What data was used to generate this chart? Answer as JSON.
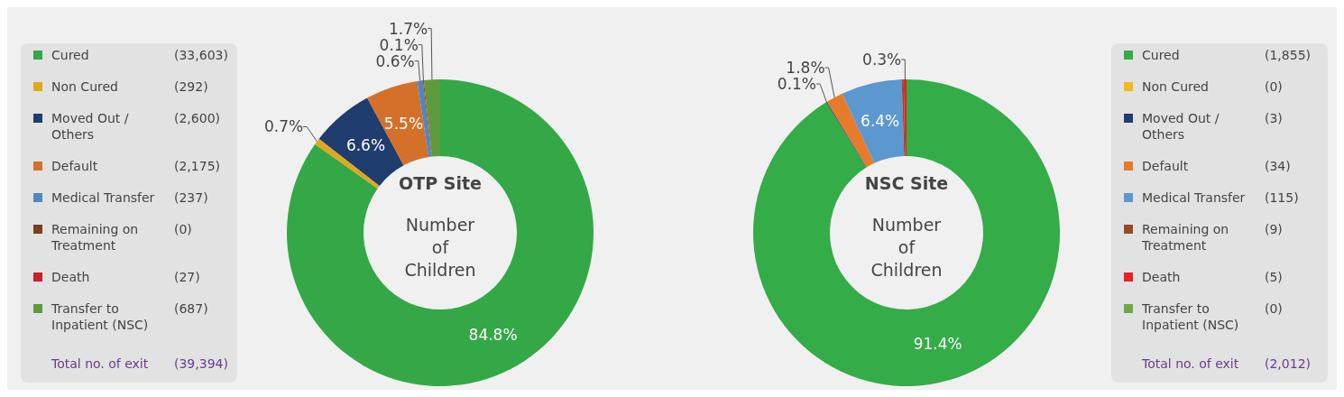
{
  "chart_data": [
    {
      "type": "other",
      "annotations": [
        "(33,603)",
        "(292)",
        "(2,600)",
        "(2,175)",
        "(237)",
        "(0)",
        "(27)",
        "(687)",
        "Total no. of exit",
        "(39,394)"
      ]
    },
    {
      "type": "donut",
      "title": "OTP Site",
      "subtitle": "Number of Children",
      "legend": "left",
      "categories": [
        "Cured",
        "Non Cured",
        "Moved Out / Others",
        "Default",
        "Medical Transfer",
        "Remaining on Treatment",
        "Death",
        "Transfer to Inpatient (NSC)"
      ],
      "values": [
        84.8,
        0.7,
        6.6,
        5.5,
        0.6,
        0,
        0.1,
        1.7
      ],
      "value_labels": [
        "84.8%",
        "0.7%",
        "6.6%",
        "5.5%",
        "0.6%",
        null,
        "0.1%",
        "1.7%"
      ],
      "colors": [
        "#34a846",
        "#e0a81c",
        "#1f3d6e",
        "#d4702a",
        "#4f88c0",
        "#7b3f1e",
        "#c8202a",
        "#5e9a3e"
      ]
    },
    {
      "type": "donut",
      "title": "NSC Site",
      "subtitle": "Number of Children",
      "legend": "right",
      "categories": [
        "Cured",
        "Non Cured",
        "Moved Out / Others",
        "Default",
        "Medical Transfer",
        "Remaining on Treatment",
        "Death",
        "Transfer to Inpatient (NSC)"
      ],
      "values": [
        91.4,
        0,
        0.1,
        1.8,
        6.4,
        0.2,
        0.3,
        0
      ],
      "value_labels": [
        "91.4%",
        null,
        "0.1%",
        "1.8%",
        "6.4%",
        null,
        "0.3%",
        null
      ],
      "colors": [
        "#34ac48",
        "#f6b81a",
        "#1f3d6e",
        "#e87a2c",
        "#5b98d0",
        "#964a23",
        "#e5222b",
        "#6fa843"
      ]
    },
    {
      "type": "other",
      "annotations": [
        "(1,855)",
        "(0)",
        "(3)",
        "(34)",
        "(115)",
        "(9)",
        "(5)",
        "(0)",
        "Total no. of exit",
        "(2,012)"
      ]
    }
  ]
}
